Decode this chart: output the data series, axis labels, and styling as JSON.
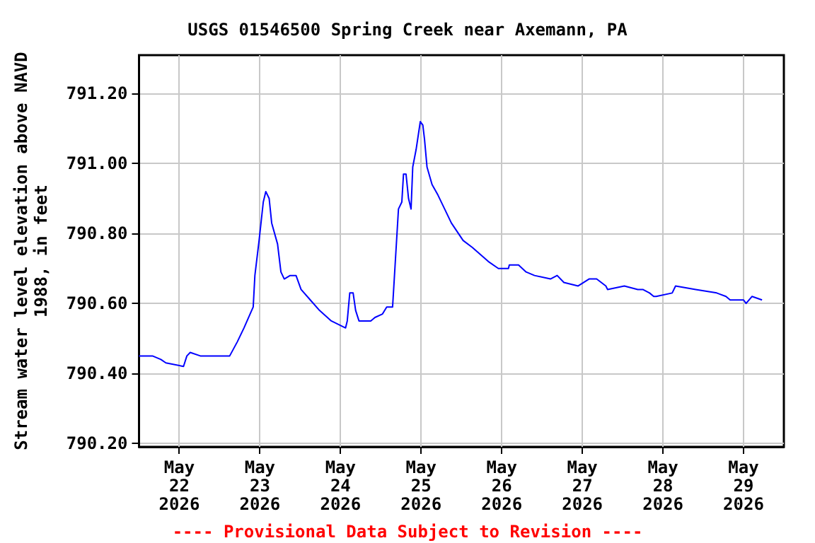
{
  "chart_data": {
    "type": "line",
    "title": "USGS 01546500 Spring Creek near Axemann, PA",
    "ylabel": "Stream water level elevation above NAVD\n1988, in feet",
    "x": [
      "2026-05-21T12:00",
      "2026-05-21T16:00",
      "2026-05-21T18:30",
      "2026-05-21T20:00",
      "2026-05-22T01:15",
      "2026-05-22T02:15",
      "2026-05-22T03:15",
      "2026-05-22T06:15",
      "2026-05-22T15:00",
      "2026-05-22T17:15",
      "2026-05-22T19:15",
      "2026-05-22T22:00",
      "2026-05-22T22:30",
      "2026-05-22T23:45",
      "2026-05-23T01:00",
      "2026-05-23T01:45",
      "2026-05-23T02:45",
      "2026-05-23T03:30",
      "2026-05-23T05:15",
      "2026-05-23T06:15",
      "2026-05-23T07:15",
      "2026-05-23T09:00",
      "2026-05-23T10:45",
      "2026-05-23T12:15",
      "2026-05-23T15:00",
      "2026-05-23T17:45",
      "2026-05-23T21:15",
      "2026-05-24T01:30",
      "2026-05-24T02:00",
      "2026-05-24T02:45",
      "2026-05-24T03:45",
      "2026-05-24T04:30",
      "2026-05-24T05:30",
      "2026-05-24T09:00",
      "2026-05-24T10:15",
      "2026-05-24T12:30",
      "2026-05-24T13:45",
      "2026-05-24T15:30",
      "2026-05-24T16:30",
      "2026-05-24T17:15",
      "2026-05-24T18:15",
      "2026-05-24T18:45",
      "2026-05-24T19:30",
      "2026-05-24T20:15",
      "2026-05-24T21:00",
      "2026-05-24T21:30",
      "2026-05-24T22:30",
      "2026-05-24T23:45",
      "2026-05-25T00:30",
      "2026-05-25T01:00",
      "2026-05-25T01:45",
      "2026-05-25T03:15",
      "2026-05-25T05:00",
      "2026-05-25T07:00",
      "2026-05-25T09:00",
      "2026-05-25T12:30",
      "2026-05-25T15:15",
      "2026-05-25T20:00",
      "2026-05-25T23:00",
      "2026-05-26T02:00",
      "2026-05-26T02:15",
      "2026-05-26T05:00",
      "2026-05-26T07:15",
      "2026-05-26T09:45",
      "2026-05-26T14:30",
      "2026-05-26T16:30",
      "2026-05-26T18:30",
      "2026-05-26T22:45",
      "2026-05-27T02:00",
      "2026-05-27T04:15",
      "2026-05-27T07:00",
      "2026-05-27T07:30",
      "2026-05-27T12:30",
      "2026-05-27T16:30",
      "2026-05-27T18:00",
      "2026-05-27T20:00",
      "2026-05-27T21:15",
      "2026-05-27T22:00",
      "2026-05-28T02:45",
      "2026-05-28T03:45",
      "2026-05-28T09:45",
      "2026-05-28T16:00",
      "2026-05-28T18:45",
      "2026-05-28T20:00",
      "2026-05-29T00:00",
      "2026-05-29T00:45",
      "2026-05-29T02:30",
      "2026-05-29T05:30"
    ],
    "series": [
      {
        "color": "#0000ff",
        "values": [
          790.45,
          790.45,
          790.44,
          790.43,
          790.42,
          790.45,
          790.46,
          790.45,
          790.45,
          790.49,
          790.53,
          790.59,
          790.68,
          790.78,
          790.89,
          790.92,
          790.9,
          790.83,
          790.77,
          790.69,
          790.67,
          790.68,
          790.68,
          790.64,
          790.61,
          790.58,
          790.55,
          790.53,
          790.55,
          790.63,
          790.63,
          790.58,
          790.55,
          790.55,
          790.56,
          790.57,
          790.59,
          790.59,
          790.75,
          790.87,
          790.89,
          790.97,
          790.97,
          790.9,
          790.87,
          790.99,
          791.04,
          791.12,
          791.11,
          791.07,
          790.99,
          790.94,
          790.91,
          790.87,
          790.83,
          790.78,
          790.76,
          790.72,
          790.7,
          790.7,
          790.71,
          790.71,
          790.69,
          790.68,
          790.67,
          790.68,
          790.66,
          790.65,
          790.67,
          790.67,
          790.65,
          790.64,
          790.65,
          790.64,
          790.64,
          790.63,
          790.62,
          790.62,
          790.63,
          790.65,
          790.64,
          790.63,
          790.62,
          790.61,
          790.61,
          790.6,
          790.62,
          790.61
        ]
      }
    ],
    "xlim": [
      "2026-05-21T12:00",
      "2026-05-29T12:00"
    ],
    "xticks": [
      {
        "value": "2026-05-22",
        "label": "May\n22\n2026"
      },
      {
        "value": "2026-05-23",
        "label": "May\n23\n2026"
      },
      {
        "value": "2026-05-24",
        "label": "May\n24\n2026"
      },
      {
        "value": "2026-05-25",
        "label": "May\n25\n2026"
      },
      {
        "value": "2026-05-26",
        "label": "May\n26\n2026"
      },
      {
        "value": "2026-05-27",
        "label": "May\n27\n2026"
      },
      {
        "value": "2026-05-28",
        "label": "May\n28\n2026"
      },
      {
        "value": "2026-05-29",
        "label": "May\n29\n2026"
      }
    ],
    "ylim": [
      790.19,
      791.31
    ],
    "yticks": [
      {
        "value": 790.2,
        "label": "790.20"
      },
      {
        "value": 790.4,
        "label": "790.40"
      },
      {
        "value": 790.6,
        "label": "790.60"
      },
      {
        "value": 790.8,
        "label": "790.80"
      },
      {
        "value": 791.0,
        "label": "791.00"
      },
      {
        "value": 791.2,
        "label": "791.20"
      }
    ],
    "grid": true,
    "annotations": [
      "---- Provisional Data Subject to Revision ----"
    ]
  }
}
